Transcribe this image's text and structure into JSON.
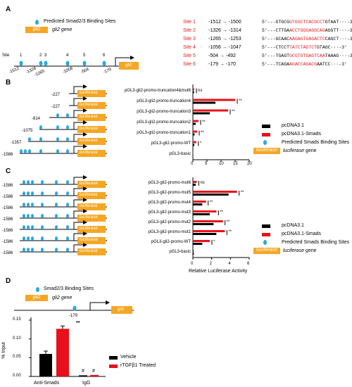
{
  "panelA": {
    "label": "A",
    "legend_site": "Predicted Smad2/3 Binding Sites",
    "gene_box": "gli2",
    "gene_label": "gli2 gene",
    "site_word": "Site",
    "site_numbers": [
      "1",
      "2",
      "3",
      "4",
      "5",
      "6"
    ],
    "positions": [
      "-1512",
      "-1326",
      "-1265",
      "-1056",
      "-504",
      "-179"
    ],
    "sites": [
      {
        "name": "Site 1",
        "range": "-1512 → -1500",
        "pre": "5'---GTGCG",
        "motif": "GTGGCTCACGCCT",
        "post": "GTAAT···-3'"
      },
      {
        "name": "Site 2",
        "range": "-1326 → -1314",
        "pre": "5'---CTTGA",
        "motif": "ACCTGGGAGGCAG",
        "post": "AGGTT···-3'"
      },
      {
        "name": "Site 3",
        "range": "-1265 → -1253",
        "pre": "5'---GCAAC",
        "motif": "AAGAGTGAGACTC",
        "post": "CAGCT···-3'"
      },
      {
        "name": "Site 4",
        "range": "-1056 → -1047",
        "pre": "5'---CTCCT",
        "motif": "TATCTAGTCT",
        "post": "GTAGC···-3'"
      },
      {
        "name": "Site 5",
        "range": "-504 → -492",
        "pre": "5'---TGAGT",
        "motif": "GCGTGTGAGTCAA",
        "post": "TAAAG···-3'"
      },
      {
        "name": "Site 6",
        "range": "-179 → -170",
        "pre": "5'---TCAGA",
        "motif": "AGACCAGACG",
        "post": "AATCC···-3'"
      }
    ]
  },
  "panelB": {
    "label": "B",
    "starts": [
      "-227",
      "-227",
      "-814",
      "-1075",
      "-1357",
      "-1586"
    ],
    "reporter": "luciferase",
    "rows": [
      "pGL3-gli2-promo-truncation4&mut6",
      "pGL3-gli2-promo-truncation4",
      "pGL3-gli2-promo-truncation3",
      "pGL3-gli2-promo-truncation2",
      "pGL3-gli2-promo-truncation1",
      "pGL3-gli2-promo-WT",
      "pGL3-basic"
    ],
    "sig": [
      "ns",
      "**",
      "**",
      "**",
      "**",
      "*",
      ""
    ],
    "legend": {
      "ctrl": "pcDNA3.1",
      "smads": "pcDNA3.1-Smads",
      "sites": "Predicted Smads Binding Sites",
      "luc": "luciferase",
      "luc_suffix": "gene"
    },
    "ticks": [
      "0",
      "5",
      "10",
      "15",
      "20"
    ]
  },
  "panelC": {
    "label": "C",
    "start": "-1586",
    "reporter": "luciferase",
    "rows": [
      "pGL3-gli2-promo-mut6",
      "pGL3-gli2-promo-mut5",
      "pGL3-gli2-promo-mut4",
      "pGL3-gli2-promo-mut3",
      "pGL3-gli2-promo-mut2",
      "pGL3-gli2-promo-mut1",
      "pGL3-gli2-promo-WT",
      "pGL3-basic"
    ],
    "sig": [
      "ns",
      "**",
      "**",
      "**",
      "**",
      "**",
      "*",
      ""
    ],
    "legend": {
      "ctrl": "pcDNA3.1",
      "smads": "pcDNA3.1-Smads",
      "sites": "Predicted Smads Binding Sites",
      "luc": "luciferase",
      "luc_suffix": "gene"
    },
    "ticks": [
      "0",
      "2",
      "4",
      "6"
    ],
    "xlabel": "Relative Luciferase Activity"
  },
  "panelD": {
    "label": "D",
    "legend_site": "Smad2/3 Binding Sites",
    "gene_box": "gli2",
    "gene_label": "gli2 gene",
    "position": "-179",
    "gene_box2": "gli2",
    "ylabel": "% Input",
    "yticks": [
      "0.00",
      "0.05",
      "0.10",
      "0.15"
    ],
    "legend": {
      "vehicle": "Vehicle",
      "treated": "rTGFβ1 Treated"
    },
    "sig_treated": "**",
    "sig_igg": "#"
  },
  "colors": {
    "control": "#000000",
    "smads": "#e8101a",
    "gene": "#f5a623",
    "site": "#29a8e0",
    "motif": "#e31a1c"
  },
  "chart_data": [
    {
      "type": "bar",
      "panel": "B",
      "orientation": "horizontal",
      "categories": [
        "pGL3-gli2-promo-truncation4&mut6",
        "pGL3-gli2-promo-truncation4",
        "pGL3-gli2-promo-truncation3",
        "pGL3-gli2-promo-truncation2",
        "pGL3-gli2-promo-truncation1",
        "pGL3-gli2-promo-WT",
        "pGL3-basic"
      ],
      "series": [
        {
          "name": "pcDNA3.1",
          "values": [
            0.4,
            8.0,
            6.0,
            1.0,
            0.6,
            0.5,
            0.1
          ]
        },
        {
          "name": "pcDNA3.1-Smads",
          "values": [
            0.5,
            15.0,
            12.5,
            2.0,
            1.5,
            1.2,
            0.1
          ]
        }
      ],
      "xlim": [
        0,
        20
      ]
    },
    {
      "type": "bar",
      "panel": "C",
      "orientation": "horizontal",
      "categories": [
        "pGL3-gli2-promo-mut6",
        "pGL3-gli2-promo-mut5",
        "pGL3-gli2-promo-mut4",
        "pGL3-gli2-promo-mut3",
        "pGL3-gli2-promo-mut2",
        "pGL3-gli2-promo-mut1",
        "pGL3-gli2-promo-WT",
        "pGL3-basic"
      ],
      "series": [
        {
          "name": "pcDNA3.1",
          "values": [
            0.3,
            3.8,
            1.0,
            1.8,
            2.2,
            2.5,
            1.0,
            0.1
          ]
        },
        {
          "name": "pcDNA3.1-Smads",
          "values": [
            0.4,
            4.7,
            1.4,
            2.5,
            3.2,
            3.4,
            1.8,
            0.1
          ]
        }
      ],
      "xlabel": "Relative Luciferase Activity",
      "xlim": [
        0,
        6
      ]
    },
    {
      "type": "bar",
      "panel": "D",
      "categories": [
        "Anti-Smads",
        "IgG"
      ],
      "series": [
        {
          "name": "Vehicle",
          "values": [
            0.06,
            0.003
          ]
        },
        {
          "name": "rTGFβ1 Treated",
          "values": [
            0.127,
            0.004
          ]
        }
      ],
      "ylabel": "% Input",
      "ylim": [
        0,
        0.15
      ]
    }
  ]
}
